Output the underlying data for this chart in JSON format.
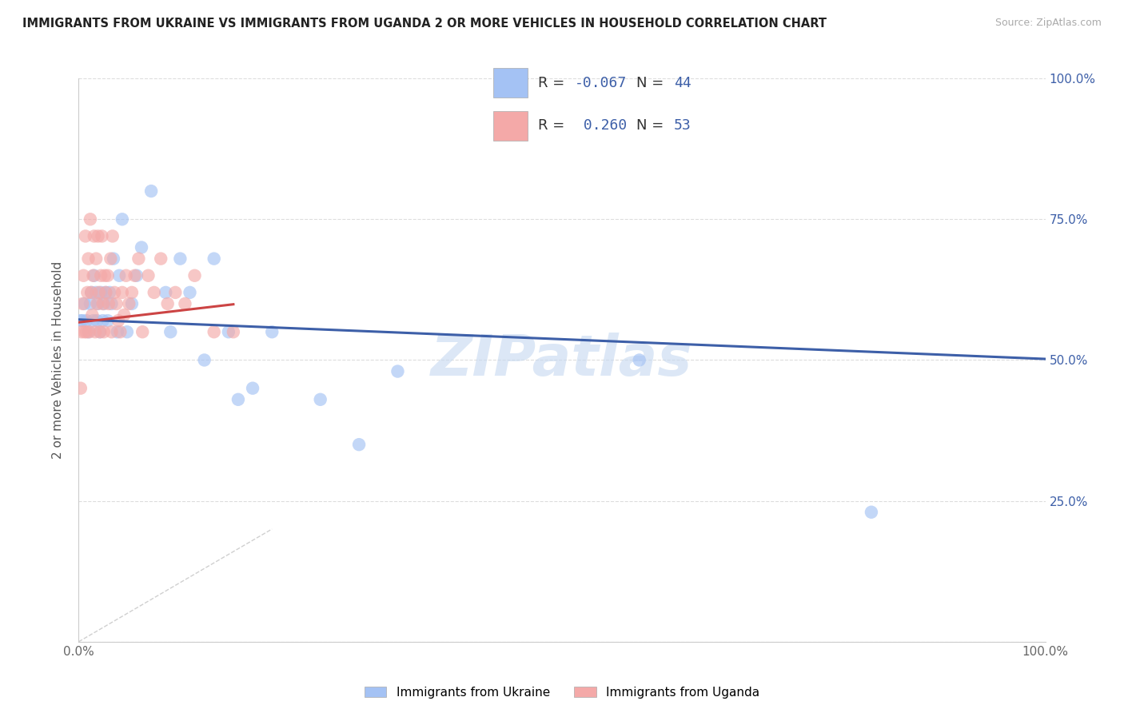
{
  "title": "IMMIGRANTS FROM UKRAINE VS IMMIGRANTS FROM UGANDA 2 OR MORE VEHICLES IN HOUSEHOLD CORRELATION CHART",
  "source": "Source: ZipAtlas.com",
  "ylabel": "2 or more Vehicles in Household",
  "xlim": [
    0,
    1.0
  ],
  "ylim": [
    0,
    1.0
  ],
  "ukraine_color": "#a4c2f4",
  "uganda_color": "#f4a9a8",
  "trendline_ukraine_color": "#3d5fa8",
  "trendline_uganda_color": "#cc4444",
  "diagonal_color": "#d0d0d0",
  "background_color": "#ffffff",
  "grid_color": "#dddddd",
  "ukraine_R": -0.067,
  "ukraine_N": 44,
  "uganda_R": 0.26,
  "uganda_N": 53,
  "ukraine_scatter_x": [
    0.002,
    0.004,
    0.006,
    0.008,
    0.01,
    0.012,
    0.013,
    0.015,
    0.016,
    0.018,
    0.019,
    0.02,
    0.022,
    0.023,
    0.025,
    0.026,
    0.028,
    0.03,
    0.032,
    0.034,
    0.036,
    0.04,
    0.042,
    0.045,
    0.05,
    0.055,
    0.06,
    0.065,
    0.075,
    0.09,
    0.095,
    0.105,
    0.115,
    0.13,
    0.14,
    0.155,
    0.165,
    0.18,
    0.2,
    0.25,
    0.29,
    0.33,
    0.58,
    0.82
  ],
  "ukraine_scatter_y": [
    0.57,
    0.57,
    0.6,
    0.57,
    0.55,
    0.6,
    0.62,
    0.57,
    0.65,
    0.62,
    0.57,
    0.6,
    0.55,
    0.62,
    0.57,
    0.6,
    0.62,
    0.57,
    0.62,
    0.6,
    0.68,
    0.55,
    0.65,
    0.75,
    0.55,
    0.6,
    0.65,
    0.7,
    0.8,
    0.62,
    0.55,
    0.68,
    0.62,
    0.5,
    0.68,
    0.55,
    0.43,
    0.45,
    0.55,
    0.43,
    0.35,
    0.48,
    0.5,
    0.23
  ],
  "uganda_scatter_x": [
    0.002,
    0.003,
    0.004,
    0.005,
    0.006,
    0.007,
    0.008,
    0.009,
    0.01,
    0.011,
    0.012,
    0.013,
    0.014,
    0.015,
    0.016,
    0.017,
    0.018,
    0.019,
    0.02,
    0.021,
    0.022,
    0.023,
    0.024,
    0.025,
    0.026,
    0.027,
    0.028,
    0.03,
    0.031,
    0.033,
    0.034,
    0.035,
    0.037,
    0.039,
    0.041,
    0.043,
    0.045,
    0.047,
    0.049,
    0.052,
    0.055,
    0.058,
    0.062,
    0.066,
    0.072,
    0.078,
    0.085,
    0.092,
    0.1,
    0.11,
    0.12,
    0.14,
    0.16
  ],
  "uganda_scatter_y": [
    0.45,
    0.55,
    0.6,
    0.65,
    0.55,
    0.72,
    0.55,
    0.62,
    0.68,
    0.55,
    0.75,
    0.62,
    0.58,
    0.65,
    0.72,
    0.55,
    0.68,
    0.6,
    0.72,
    0.62,
    0.55,
    0.65,
    0.72,
    0.6,
    0.55,
    0.65,
    0.62,
    0.65,
    0.6,
    0.68,
    0.55,
    0.72,
    0.62,
    0.6,
    0.57,
    0.55,
    0.62,
    0.58,
    0.65,
    0.6,
    0.62,
    0.65,
    0.68,
    0.55,
    0.65,
    0.62,
    0.68,
    0.6,
    0.62,
    0.6,
    0.65,
    0.55,
    0.55
  ],
  "legend_ukraine_label": "Immigrants from Ukraine",
  "legend_uganda_label": "Immigrants from Uganda",
  "r_n_color": "#3d5fa8",
  "watermark_text": "ZIPatlas",
  "watermark_color": "#c5d8f0"
}
